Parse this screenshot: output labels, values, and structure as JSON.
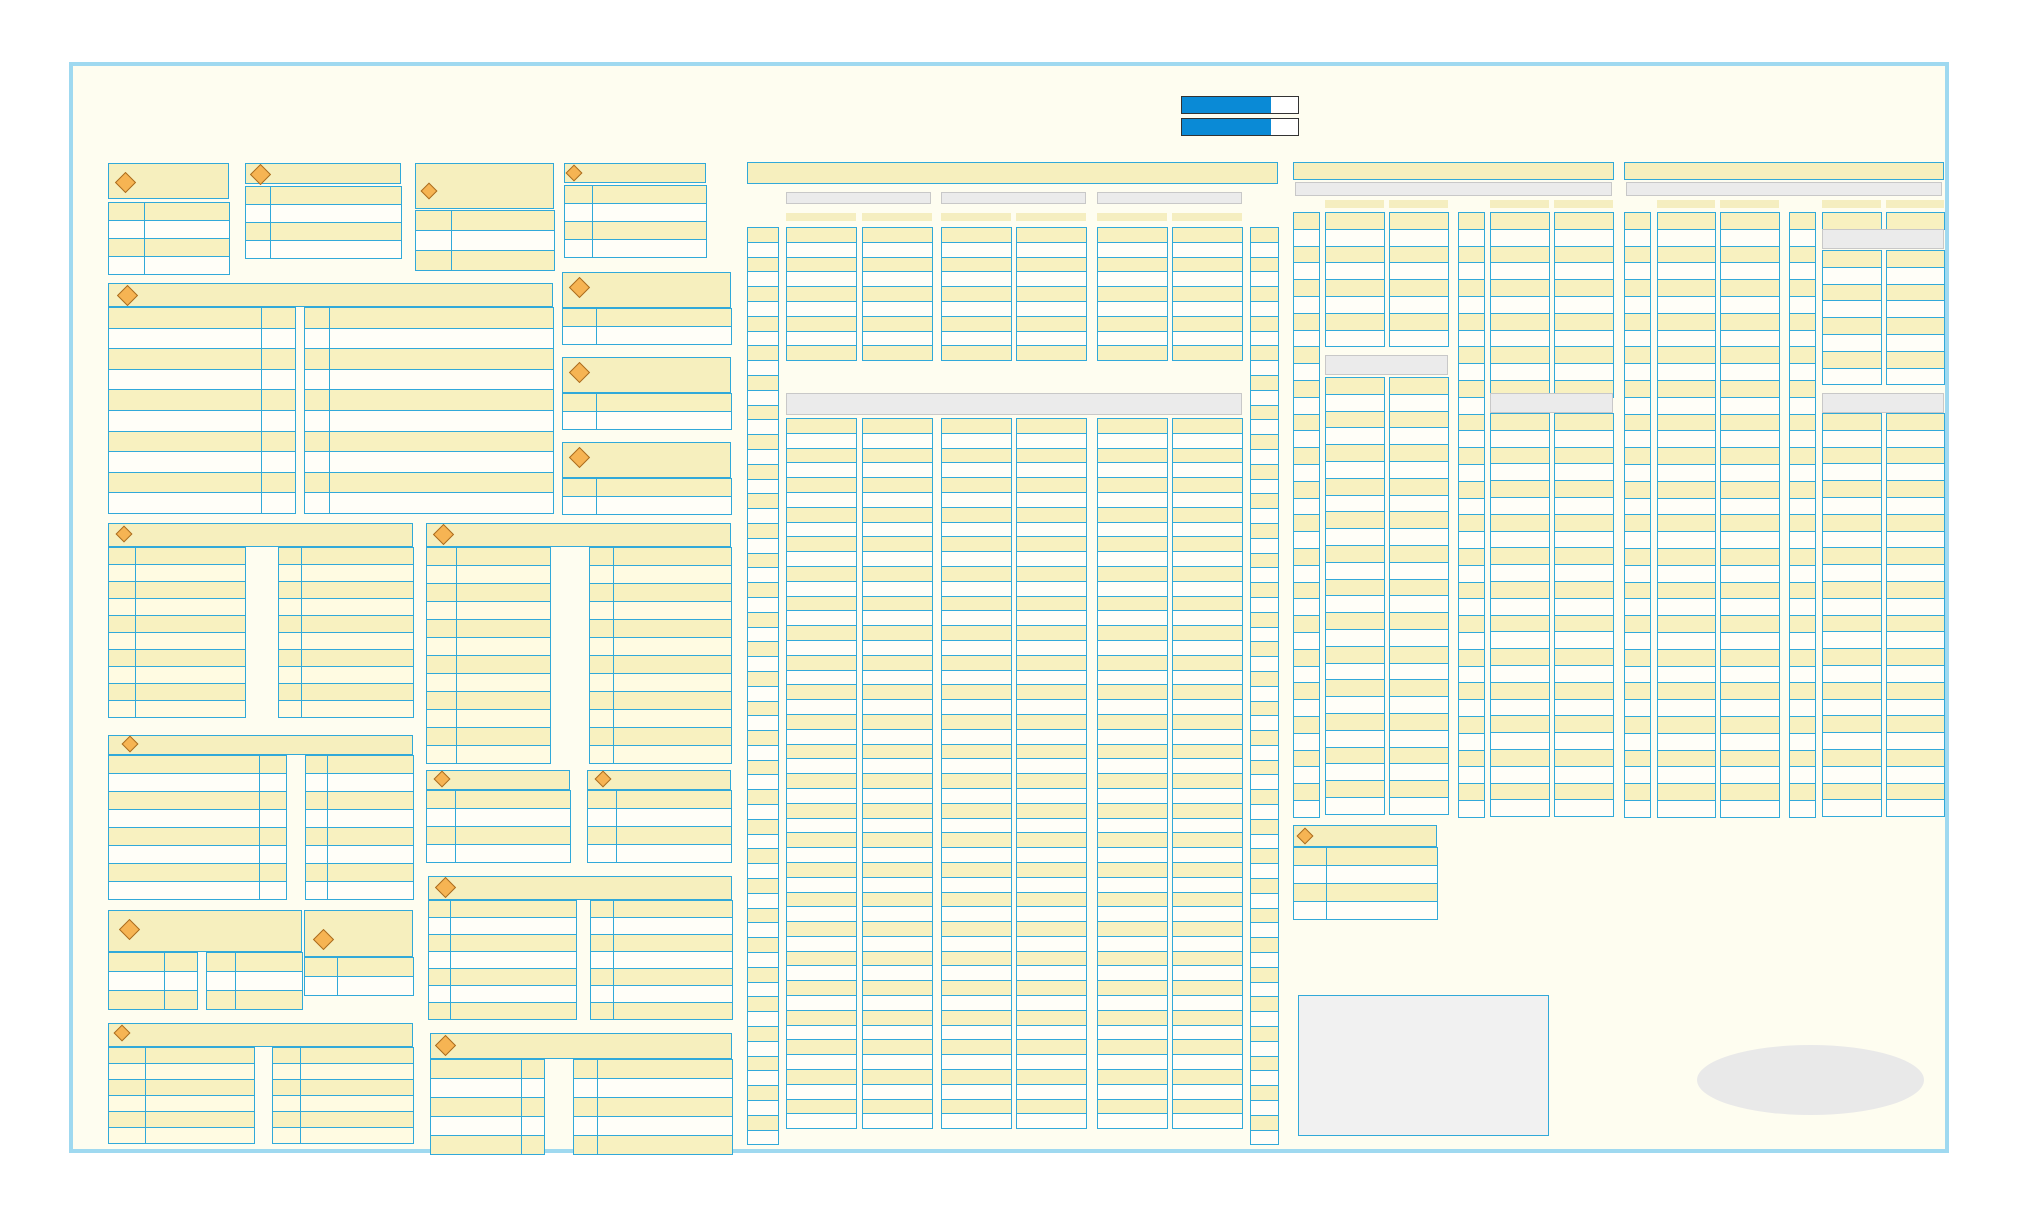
{
  "progress_bars": [
    {
      "name": "progress-bar-1",
      "value": 0.77
    },
    {
      "name": "progress-bar-2",
      "value": 0.77
    }
  ],
  "colors": {
    "background": "#fefdf0",
    "frame": "#9fd9f0",
    "grid_line": "#31a9d9",
    "header_fill": "#f8f1c0",
    "row_alt": "#fffbe2",
    "marker": "#f6b453",
    "progress": "#0a8ad6",
    "group_bar": "#ebebeb"
  },
  "icons": {
    "marker": "diamond-marker-icon"
  }
}
